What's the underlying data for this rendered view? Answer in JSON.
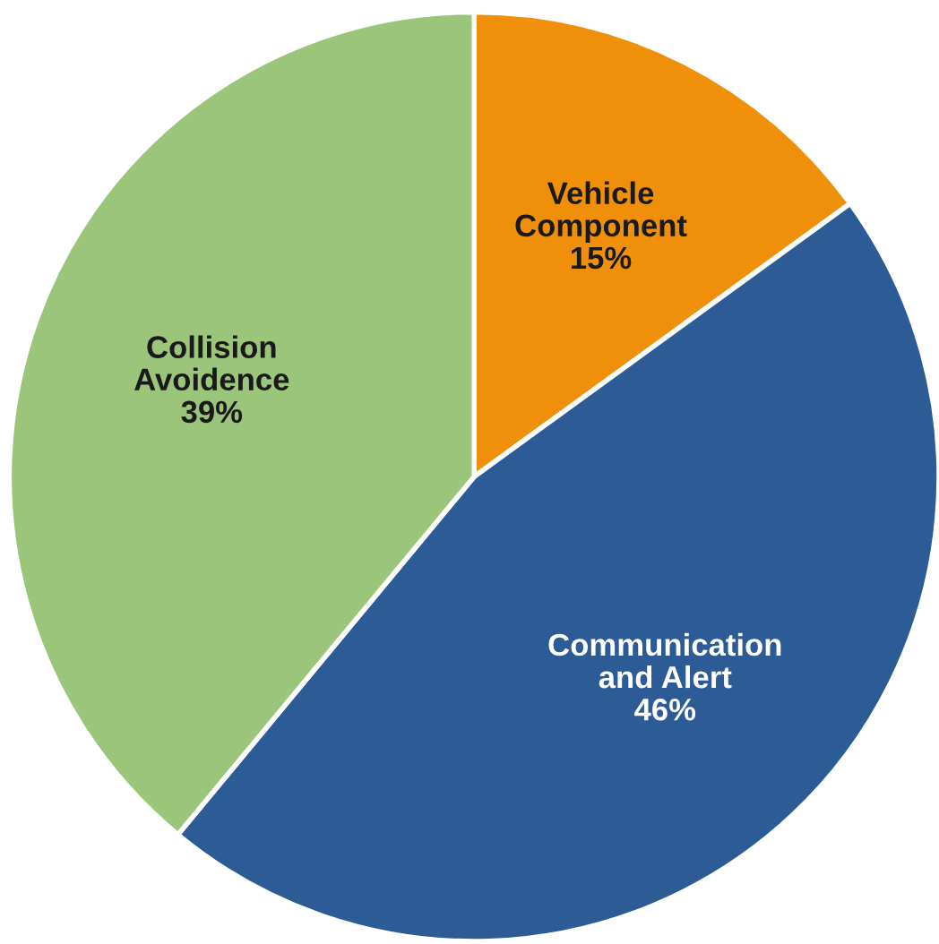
{
  "chart_data": {
    "type": "pie",
    "categories": [
      "Vehicle\nComponent",
      "Communication\nand Alert",
      "Collision\nAvoidence"
    ],
    "values": [
      15,
      46,
      39
    ],
    "colors": [
      "#f0900a",
      "#2c5b96",
      "#9bc57a"
    ],
    "value_labels": [
      "15%",
      "46%",
      "39%"
    ]
  }
}
